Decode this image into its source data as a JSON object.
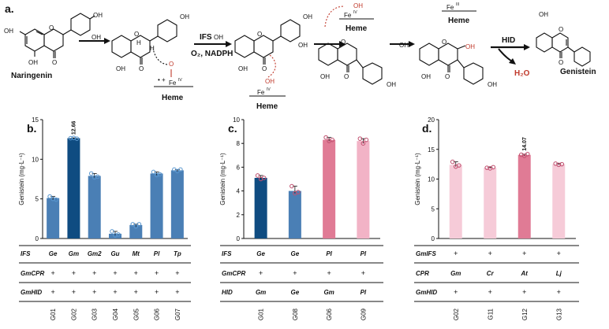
{
  "scheme": {
    "panel": "a.",
    "compounds": {
      "start": "Naringenin",
      "end": "Genistein"
    },
    "enzymes": {
      "ifs": "IFS",
      "ifs_cofactors": "O₂, NADPH",
      "hid": "HID"
    },
    "heme": [
      "Heme",
      "Heme",
      "Heme",
      "Heme"
    ],
    "iron": [
      "Fe",
      "Fe",
      "Fe",
      "Fe"
    ],
    "oxidation": [
      "IV",
      "IV",
      "IV",
      "III"
    ],
    "oh": [
      "OH",
      "OH",
      "OH",
      "OH",
      "OH",
      "OH",
      "OH",
      "OH",
      "OH",
      "OH",
      "OH",
      "OH",
      "OH",
      "OH",
      "OH",
      "OH",
      "OH",
      "OH",
      "OH"
    ],
    "o": [
      "O",
      "O",
      "O",
      "O",
      "O",
      "O",
      "O",
      "O",
      "O",
      "O",
      "O",
      "O",
      "O"
    ],
    "h": [
      "H",
      "H"
    ],
    "radical": "• +",
    "byproduct": "H₂O"
  },
  "chart_data": [
    {
      "type": "bar",
      "panel": "b.",
      "ylabel": "Genistein (mg·L⁻¹)",
      "ylim": [
        0,
        15
      ],
      "yticks": [
        "0",
        "5",
        "10",
        "15"
      ],
      "categories": [
        "G01",
        "G02",
        "G03",
        "G04",
        "G05",
        "G06",
        "G07"
      ],
      "values": [
        5.1,
        12.66,
        7.9,
        0.6,
        1.7,
        8.2,
        8.6
      ],
      "points": [
        [
          5.3,
          5.0,
          4.9
        ],
        [
          12.66,
          12.7,
          12.6
        ],
        [
          8.2,
          7.7,
          7.8
        ],
        [
          0.9,
          0.4,
          0.5
        ],
        [
          1.8,
          1.5,
          1.8
        ],
        [
          8.4,
          8.0,
          8.1
        ],
        [
          8.7,
          8.5,
          8.7
        ]
      ],
      "value_labels": [
        "",
        "12.66",
        "",
        "",
        "",
        "",
        ""
      ],
      "colors": [
        "#4a7fb5",
        "#0f4c81",
        "#4a7fb5",
        "#4a7fb5",
        "#4a7fb5",
        "#4a7fb5",
        "#4a7fb5"
      ],
      "point_color": "#5a97cf",
      "table": {
        "rows": [
          {
            "name": "IFS",
            "cells": [
              "Ge",
              "Gm",
              "Gm2",
              "Gu",
              "Mt",
              "Pl",
              "Tp"
            ]
          },
          {
            "name": "GmCPR",
            "cells": [
              "+",
              "+",
              "+",
              "+",
              "+",
              "+",
              "+"
            ]
          },
          {
            "name": "GmHID",
            "cells": [
              "+",
              "+",
              "+",
              "+",
              "+",
              "+",
              "+"
            ]
          }
        ]
      }
    },
    {
      "type": "bar",
      "panel": "c.",
      "ylabel": "Genistein (mg·L⁻¹)",
      "ylim": [
        0,
        10
      ],
      "yticks": [
        "0",
        "2",
        "4",
        "6",
        "8",
        "10"
      ],
      "categories": [
        "G01",
        "G08",
        "G06",
        "G09"
      ],
      "values": [
        5.1,
        4.0,
        8.3,
        8.2
      ],
      "points": [
        [
          5.3,
          5.0,
          5.1
        ],
        [
          4.4,
          3.8,
          3.9
        ],
        [
          8.5,
          8.2,
          8.3
        ],
        [
          8.4,
          8.0,
          8.3
        ]
      ],
      "value_labels": [
        "",
        "",
        "",
        ""
      ],
      "colors": [
        "#0f4c81",
        "#4a7fb5",
        "#e07b95",
        "#f2b3c6"
      ],
      "point_color": "#c0506f",
      "table": {
        "rows": [
          {
            "name": "IFS",
            "cells": [
              "Ge",
              "Ge",
              "Pl",
              "Pl"
            ]
          },
          {
            "name": "GmCPR",
            "cells": [
              "+",
              "+",
              "+",
              "+"
            ]
          },
          {
            "name": "HID",
            "cells": [
              "Gm",
              "Ge",
              "Gm",
              "Pl"
            ]
          }
        ]
      }
    },
    {
      "type": "bar",
      "panel": "d.",
      "ylabel": "Genistein (mg·L⁻¹)",
      "ylim": [
        0,
        20
      ],
      "yticks": [
        "0",
        "5",
        "10",
        "15",
        "20"
      ],
      "categories": [
        "G02",
        "G11",
        "G12",
        "G13"
      ],
      "values": [
        12.4,
        11.9,
        14.07,
        12.5
      ],
      "points": [
        [
          12.9,
          12.1,
          12.3
        ],
        [
          11.9,
          11.8,
          12.0
        ],
        [
          14.1,
          13.9,
          14.2
        ],
        [
          12.6,
          12.4,
          12.5
        ]
      ],
      "value_labels": [
        "",
        "",
        "14.07",
        ""
      ],
      "colors": [
        "#f6cbd8",
        "#f6cbd8",
        "#e07b95",
        "#f6cbd8"
      ],
      "point_color": "#c0506f",
      "table": {
        "rows": [
          {
            "name": "GmIFS",
            "cells": [
              "+",
              "+",
              "+",
              "+"
            ]
          },
          {
            "name": "CPR",
            "cells": [
              "Gm",
              "Cr",
              "At",
              "Lj"
            ]
          },
          {
            "name": "GmHID",
            "cells": [
              "+",
              "+",
              "+",
              "+"
            ]
          }
        ]
      }
    }
  ]
}
